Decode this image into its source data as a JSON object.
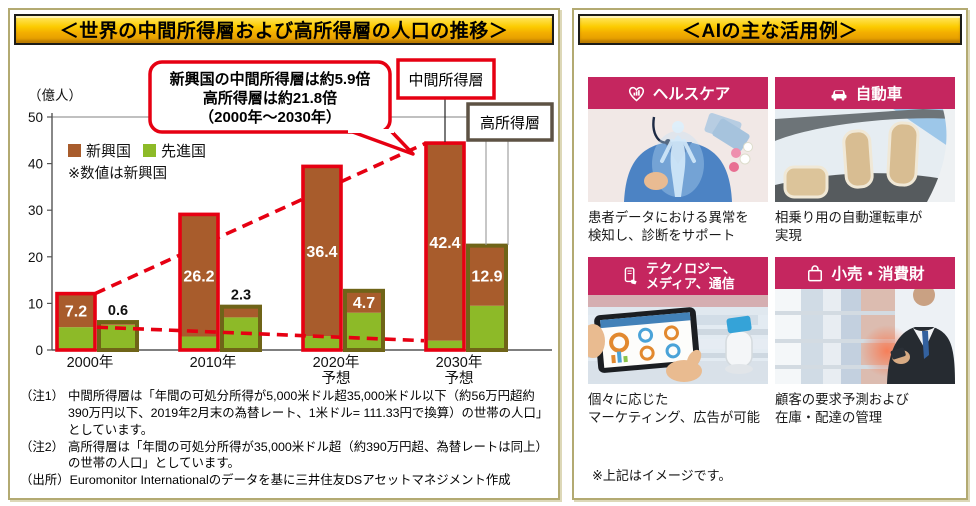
{
  "left_panel": {
    "title": "＜世界の中間所得層および高所得層の人口の推移＞",
    "y_axis_unit": "（億人）",
    "legend": {
      "emerging": "新興国",
      "developed": "先進国",
      "note": "※数値は新興国"
    },
    "callout": {
      "line1": "新興国の中間所得層は約5.9倍",
      "line2": "高所得層は約21.8倍",
      "line3": "（2000年～2030年）"
    },
    "labels": {
      "middle": "中間所得層",
      "high": "高所得層"
    },
    "notes": [
      {
        "label": "（注1）",
        "text": "中間所得層は「年間の可処分所得が5,000米ドル超35,000米ドル以下（約56万円超約390万円以下、2019年2月末の為替レート、1米ドル= 111.33円で換算）の世帯の人口」としています。"
      },
      {
        "label": "（注2）",
        "text": "高所得層は「年間の可処分所得が35,000米ドル超（約390万円超、為替レートは同上）の世帯の人口」としています。"
      },
      {
        "label": "（出所）",
        "text": "Euromonitor Internationalのデータを基に三井住友DSアセットマネジメント作成"
      }
    ]
  },
  "chart_data": {
    "type": "bar",
    "title": "世界の中間所得層および高所得層の人口の推移",
    "ylabel": "億人",
    "ylim": [
      0,
      50
    ],
    "yticks": [
      0,
      10,
      20,
      30,
      40,
      50
    ],
    "grid": "top line at 50 only",
    "categories": [
      "2000年",
      "2010年",
      "2020年\n予想",
      "2030年\n予想"
    ],
    "groups": [
      {
        "name": "中間所得層",
        "border_color": "#e60012",
        "stack": [
          {
            "name": "先進国",
            "color": "#8dba28",
            "values": [
              4.9,
              2.9,
              3.0,
              2.0
            ]
          },
          {
            "name": "新興国",
            "color": "#a85c2c",
            "values": [
              7.2,
              26.2,
              36.4,
              42.4
            ]
          }
        ]
      },
      {
        "name": "高所得層",
        "border_color": "#6f6418",
        "stack": [
          {
            "name": "先進国",
            "color": "#8dba28",
            "values": [
              5.4,
              7.0,
              8.0,
              9.5
            ]
          },
          {
            "name": "新興国",
            "color": "#a85c2c",
            "values": [
              0.6,
              2.3,
              4.7,
              12.9
            ]
          }
        ]
      }
    ],
    "value_labels_note": "数値は新興国（emerging-market values labeled on bars）",
    "annotation": "新興国の中間所得層は約5.9倍 高所得層は約21.8倍（2000年～2030年）",
    "legend_position": "upper-left inside plot"
  },
  "right_panel": {
    "title": "＜AIの主な活用例＞",
    "cards": [
      {
        "header": "ヘルスケア",
        "icon": "heart-chart-icon",
        "caption": "患者データにおける異常を\n検知し、診断をサポート"
      },
      {
        "header": "自動車",
        "icon": "car-icon",
        "caption": "相乗り用の自動運転車が\n実現"
      },
      {
        "header": "テクノロジー、\nメディア、通信",
        "icon": "smartphone-hand-icon",
        "caption": "個々に応じた\nマーケティング、広告が可能"
      },
      {
        "header": "小売・消費財",
        "icon": "shopping-bag-icon",
        "caption": "顧客の要求予測および\n在庫・配達の管理"
      }
    ],
    "footnote": "※上記はイメージです。"
  },
  "colors": {
    "banner_gold": "#fccb00",
    "card_pink": "#c5265f",
    "accent_red": "#e60012",
    "bar_brown": "#a85c2c",
    "bar_green": "#8dba28",
    "high_border_olive": "#6f6418",
    "high_label_border": "#5d5244",
    "panel_border_tan": "#b3aa72"
  }
}
